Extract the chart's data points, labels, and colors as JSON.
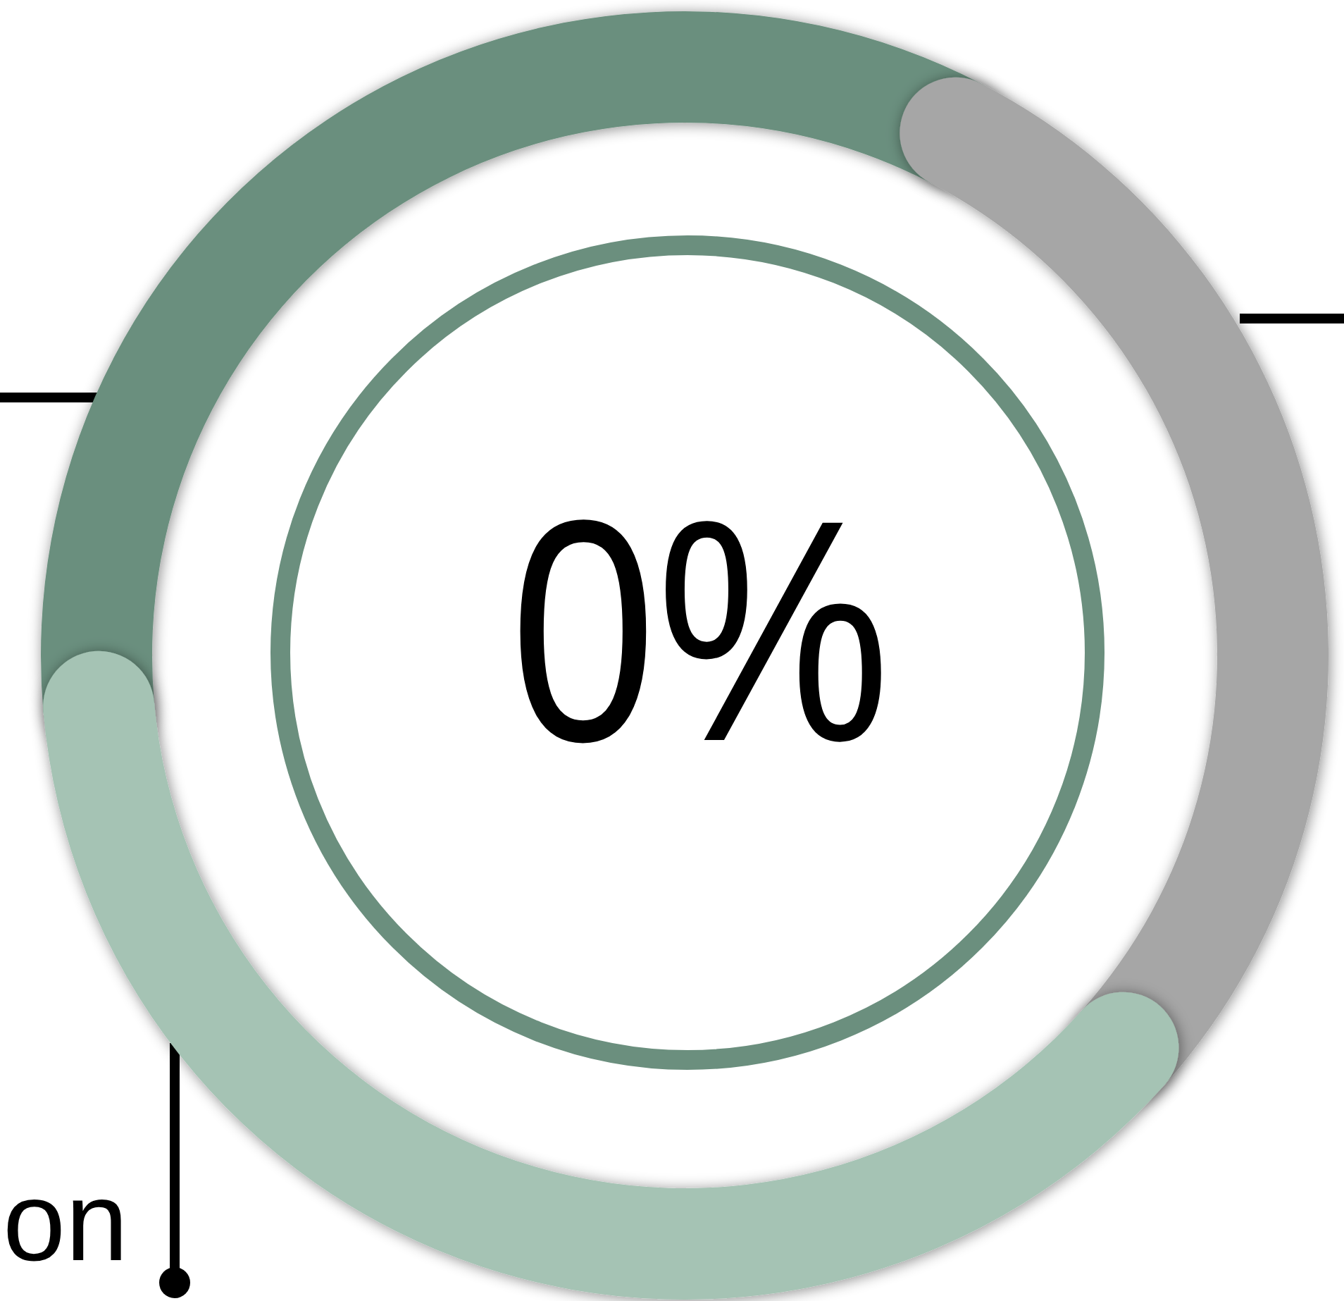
{
  "chart_data": {
    "type": "donut",
    "categories": [
      null,
      null,
      "on"
    ],
    "values": [
      34,
      29,
      37
    ],
    "colors": [
      "#6b8f7e",
      "#a6a6a6",
      "#a5c3b4"
    ],
    "annotations": [
      "0%"
    ]
  }
}
